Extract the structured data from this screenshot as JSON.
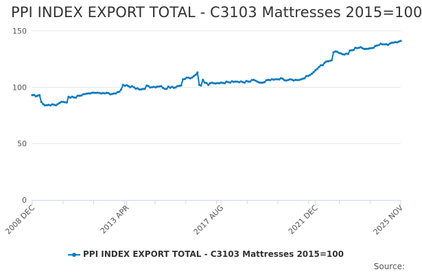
{
  "chart_data": {
    "type": "line",
    "title": "PPI INDEX EXPORT TOTAL - C3103 Mattresses 2015=100",
    "xlabel": "",
    "ylabel": "",
    "ylim": [
      0,
      150
    ],
    "yticks": [
      0,
      50,
      100,
      150
    ],
    "grid": true,
    "legend_position": "bottom",
    "x_ticks": [
      "2008 DEC",
      "2013 APR",
      "2017 AUG",
      "2021 DEC",
      "2025 NOV"
    ],
    "x_tick_index": [
      0,
      52,
      104,
      156,
      203
    ],
    "series": [
      {
        "name": "PPI INDEX EXPORT TOTAL - C3103 Mattresses 2015=100",
        "color": "#0a7abf",
        "start": "2008 DEC",
        "end": "2025 NOV",
        "frequency": "monthly",
        "keypoints": [
          [
            0,
            93
          ],
          [
            3,
            92.5
          ],
          [
            4,
            93
          ],
          [
            5,
            87
          ],
          [
            6,
            85
          ],
          [
            7,
            84
          ],
          [
            12,
            84.5
          ],
          [
            14,
            85
          ],
          [
            15,
            86
          ],
          [
            16,
            87
          ],
          [
            19,
            86.5
          ],
          [
            20,
            91.5
          ],
          [
            23,
            91
          ],
          [
            26,
            92.5
          ],
          [
            29,
            94
          ],
          [
            32,
            94.5
          ],
          [
            35,
            95
          ],
          [
            38,
            94.5
          ],
          [
            41,
            95
          ],
          [
            44,
            94
          ],
          [
            46,
            94.5
          ],
          [
            48,
            96
          ],
          [
            49,
            98
          ],
          [
            50,
            102
          ],
          [
            53,
            101
          ],
          [
            56,
            100
          ],
          [
            59,
            98
          ],
          [
            62,
            98.5
          ],
          [
            63,
            101.5
          ],
          [
            66,
            100
          ],
          [
            69,
            100.5
          ],
          [
            71,
            101
          ],
          [
            72,
            99.5
          ],
          [
            74,
            98.5
          ],
          [
            75,
            100.5
          ],
          [
            78,
            99.5
          ],
          [
            80,
            101
          ],
          [
            82,
            101.5
          ],
          [
            83,
            107
          ],
          [
            85,
            108.5
          ],
          [
            88,
            108.5
          ],
          [
            90,
            111
          ],
          [
            91,
            113
          ],
          [
            92,
            102
          ],
          [
            93,
            101.5
          ],
          [
            94,
            106.5
          ],
          [
            95,
            104
          ],
          [
            97,
            102
          ],
          [
            98,
            103.5
          ],
          [
            103,
            103.5
          ],
          [
            108,
            104.5
          ],
          [
            112,
            105
          ],
          [
            116,
            104.5
          ],
          [
            119,
            105
          ],
          [
            122,
            106.5
          ],
          [
            124,
            105
          ],
          [
            126,
            104
          ],
          [
            128,
            104.5
          ],
          [
            130,
            106.5
          ],
          [
            134,
            107
          ],
          [
            138,
            107.5
          ],
          [
            140,
            106
          ],
          [
            142,
            107
          ],
          [
            144,
            106
          ],
          [
            148,
            107
          ],
          [
            152,
            110
          ],
          [
            154,
            112
          ],
          [
            156,
            115
          ],
          [
            158,
            118
          ],
          [
            160,
            119.5
          ],
          [
            161,
            121.5
          ],
          [
            163,
            123
          ],
          [
            165,
            124
          ],
          [
            166,
            131
          ],
          [
            168,
            131.5
          ],
          [
            170,
            130
          ],
          [
            172,
            129
          ],
          [
            174,
            129.5
          ],
          [
            175,
            132.5
          ],
          [
            177,
            133
          ],
          [
            178,
            135
          ],
          [
            180,
            135
          ],
          [
            182,
            134.5
          ],
          [
            184,
            134
          ],
          [
            186,
            134.5
          ],
          [
            188,
            135
          ],
          [
            190,
            137
          ],
          [
            192,
            138.5
          ],
          [
            194,
            138
          ],
          [
            196,
            137.5
          ],
          [
            198,
            139.5
          ],
          [
            200,
            140
          ],
          [
            202,
            140.5
          ],
          [
            203,
            141
          ]
        ]
      }
    ]
  },
  "legend": {
    "label": "PPI INDEX EXPORT TOTAL - C3103 Mattresses 2015=100"
  },
  "source": {
    "label": "Source:"
  }
}
